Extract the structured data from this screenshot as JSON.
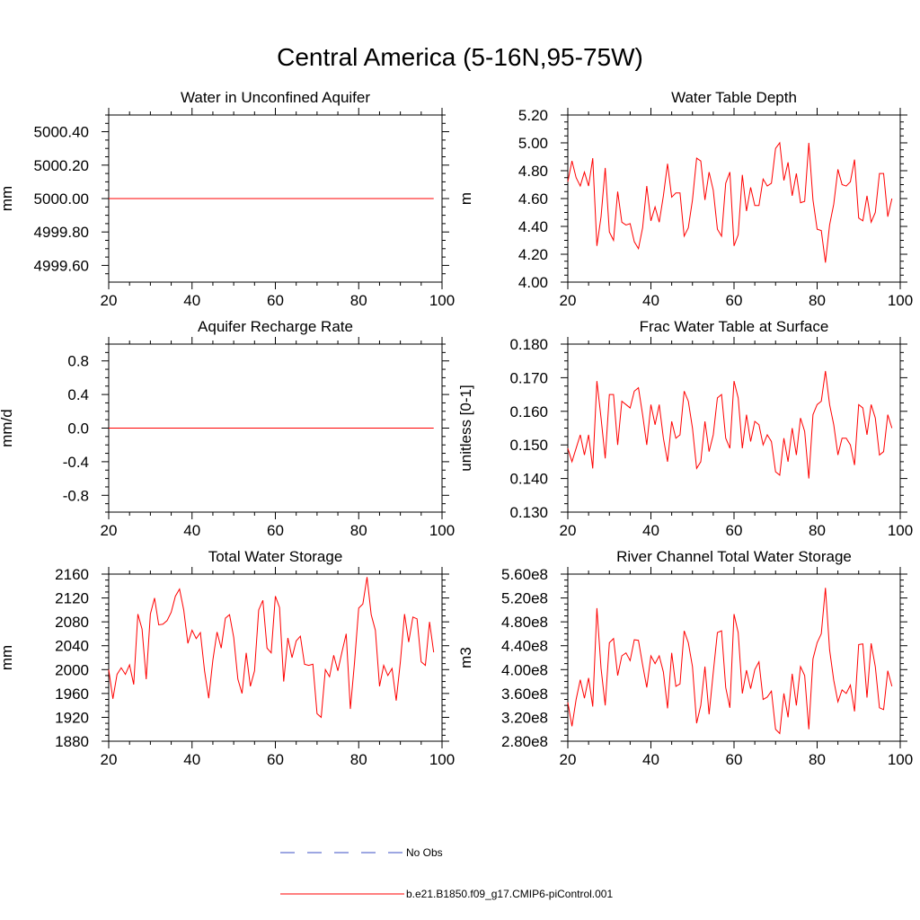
{
  "title": "Central America (5-16N,95-75W)",
  "colors": {
    "series": "#ff0000",
    "obs": "#3b4fc4",
    "axis": "#000000"
  },
  "legend": {
    "obs_label": "No Obs",
    "model_label": "b.e21.B1850.f09_g17.CMIP6-piControl.001"
  },
  "chart_data": [
    {
      "type": "line",
      "title": "Water in Unconfined Aquifer",
      "ylabel": "mm",
      "xlim": [
        20,
        100
      ],
      "ylim": [
        4999.5,
        5000.5
      ],
      "xticks": [
        20,
        40,
        60,
        80,
        100
      ],
      "xtick_labels": [
        "20",
        "40",
        "60",
        "80",
        "100"
      ],
      "yticks": [
        4999.6,
        4999.8,
        5000.0,
        5000.2,
        5000.4
      ],
      "ytick_labels": [
        "4999.60",
        "4999.80",
        "5000.00",
        "5000.20",
        "5000.40"
      ],
      "x_start": 20,
      "series": [
        {
          "name": "b.e21.B1850.f09_g17.CMIP6-piControl.001",
          "values": [
            5000,
            5000,
            5000,
            5000,
            5000,
            5000,
            5000,
            5000,
            5000,
            5000,
            5000,
            5000,
            5000,
            5000,
            5000,
            5000,
            5000,
            5000,
            5000,
            5000,
            5000,
            5000,
            5000,
            5000,
            5000,
            5000,
            5000,
            5000,
            5000,
            5000,
            5000,
            5000,
            5000,
            5000,
            5000,
            5000,
            5000,
            5000,
            5000,
            5000,
            5000,
            5000,
            5000,
            5000,
            5000,
            5000,
            5000,
            5000,
            5000,
            5000,
            5000,
            5000,
            5000,
            5000,
            5000,
            5000,
            5000,
            5000,
            5000,
            5000,
            5000,
            5000,
            5000,
            5000,
            5000,
            5000,
            5000,
            5000,
            5000,
            5000,
            5000,
            5000,
            5000,
            5000,
            5000,
            5000,
            5000,
            5000,
            5000
          ]
        }
      ]
    },
    {
      "type": "line",
      "title": "Water Table Depth",
      "ylabel": "m",
      "xlim": [
        20,
        100
      ],
      "ylim": [
        4.0,
        5.2
      ],
      "xticks": [
        20,
        40,
        60,
        80,
        100
      ],
      "xtick_labels": [
        "20",
        "40",
        "60",
        "80",
        "100"
      ],
      "yticks": [
        4.0,
        4.2,
        4.4,
        4.6,
        4.8,
        5.0,
        5.2
      ],
      "ytick_labels": [
        "4.00",
        "4.20",
        "4.40",
        "4.60",
        "4.80",
        "5.00",
        "5.20"
      ],
      "x_start": 20,
      "series": [
        {
          "name": "b.e21.B1850.f09_g17.CMIP6-piControl.001",
          "values": [
            4.72,
            4.87,
            4.75,
            4.69,
            4.79,
            4.69,
            4.89,
            4.26,
            4.47,
            4.82,
            4.36,
            4.3,
            4.65,
            4.43,
            4.41,
            4.42,
            4.29,
            4.24,
            4.39,
            4.69,
            4.44,
            4.54,
            4.43,
            4.62,
            4.85,
            4.61,
            4.64,
            4.64,
            4.33,
            4.39,
            4.59,
            4.89,
            4.87,
            4.59,
            4.79,
            4.66,
            4.38,
            4.33,
            4.71,
            4.79,
            4.26,
            4.34,
            4.77,
            4.51,
            4.68,
            4.55,
            4.55,
            4.74,
            4.69,
            4.71,
            4.96,
            5.0,
            4.73,
            4.86,
            4.62,
            4.78,
            4.57,
            4.58,
            5.0,
            4.59,
            4.38,
            4.37,
            4.14,
            4.41,
            4.56,
            4.81,
            4.7,
            4.69,
            4.72,
            4.88,
            4.46,
            4.44,
            4.62,
            4.43,
            4.5,
            4.78,
            4.78,
            4.47,
            4.6
          ]
        }
      ]
    },
    {
      "type": "line",
      "title": "Aquifer Recharge Rate",
      "ylabel": "mm/d",
      "xlim": [
        20,
        100
      ],
      "ylim": [
        -1.0,
        1.0
      ],
      "xticks": [
        20,
        40,
        60,
        80,
        100
      ],
      "xtick_labels": [
        "20",
        "40",
        "60",
        "80",
        "100"
      ],
      "yticks": [
        -0.8,
        -0.4,
        0.0,
        0.4,
        0.8
      ],
      "ytick_labels": [
        "-0.8",
        "-0.4",
        "0.0",
        "0.4",
        "0.8"
      ],
      "x_start": 20,
      "series": [
        {
          "name": "b.e21.B1850.f09_g17.CMIP6-piControl.001",
          "values": [
            0,
            0,
            0,
            0,
            0,
            0,
            0,
            0,
            0,
            0,
            0,
            0,
            0,
            0,
            0,
            0,
            0,
            0,
            0,
            0,
            0,
            0,
            0,
            0,
            0,
            0,
            0,
            0,
            0,
            0,
            0,
            0,
            0,
            0,
            0,
            0,
            0,
            0,
            0,
            0,
            0,
            0,
            0,
            0,
            0,
            0,
            0,
            0,
            0,
            0,
            0,
            0,
            0,
            0,
            0,
            0,
            0,
            0,
            0,
            0,
            0,
            0,
            0,
            0,
            0,
            0,
            0,
            0,
            0,
            0,
            0,
            0,
            0,
            0,
            0,
            0,
            0,
            0,
            0
          ]
        }
      ]
    },
    {
      "type": "line",
      "title": "Frac Water Table at Surface",
      "ylabel": "unitless [0-1]",
      "xlim": [
        20,
        100
      ],
      "ylim": [
        0.13,
        0.18
      ],
      "xticks": [
        20,
        40,
        60,
        80,
        100
      ],
      "xtick_labels": [
        "20",
        "40",
        "60",
        "80",
        "100"
      ],
      "yticks": [
        0.13,
        0.14,
        0.15,
        0.16,
        0.17,
        0.18
      ],
      "ytick_labels": [
        "0.130",
        "0.140",
        "0.150",
        "0.160",
        "0.170",
        "0.180"
      ],
      "x_start": 20,
      "series": [
        {
          "name": "b.e21.B1850.f09_g17.CMIP6-piControl.001",
          "values": [
            0.149,
            0.145,
            0.149,
            0.153,
            0.147,
            0.153,
            0.143,
            0.169,
            0.158,
            0.146,
            0.165,
            0.165,
            0.15,
            0.163,
            0.162,
            0.161,
            0.166,
            0.167,
            0.159,
            0.15,
            0.162,
            0.156,
            0.162,
            0.152,
            0.145,
            0.157,
            0.152,
            0.153,
            0.166,
            0.163,
            0.155,
            0.143,
            0.145,
            0.157,
            0.148,
            0.153,
            0.164,
            0.165,
            0.152,
            0.149,
            0.169,
            0.164,
            0.149,
            0.159,
            0.151,
            0.157,
            0.156,
            0.15,
            0.153,
            0.151,
            0.142,
            0.141,
            0.152,
            0.145,
            0.155,
            0.147,
            0.158,
            0.154,
            0.14,
            0.159,
            0.162,
            0.163,
            0.172,
            0.162,
            0.156,
            0.147,
            0.152,
            0.152,
            0.15,
            0.144,
            0.162,
            0.161,
            0.153,
            0.162,
            0.158,
            0.147,
            0.148,
            0.159,
            0.155
          ]
        }
      ]
    },
    {
      "type": "line",
      "title": "Total Water Storage",
      "ylabel": "mm",
      "xlim": [
        20,
        100
      ],
      "ylim": [
        1880,
        2160
      ],
      "xticks": [
        20,
        40,
        60,
        80,
        100
      ],
      "xtick_labels": [
        "20",
        "40",
        "60",
        "80",
        "100"
      ],
      "yticks": [
        1880,
        1920,
        1960,
        2000,
        2040,
        2080,
        2120,
        2160
      ],
      "ytick_labels": [
        "1880",
        "1920",
        "1960",
        "2000",
        "2040",
        "2080",
        "2120",
        "2160"
      ],
      "x_start": 20,
      "series": [
        {
          "name": "b.e21.B1850.f09_g17.CMIP6-piControl.001",
          "values": [
            2000,
            1951,
            1992,
            2003,
            1992,
            2008,
            1975,
            2093,
            2068,
            1984,
            2093,
            2120,
            2075,
            2076,
            2082,
            2096,
            2123,
            2135,
            2100,
            2044,
            2066,
            2052,
            2062,
            1998,
            1952,
            2016,
            2063,
            2036,
            2086,
            2092,
            2054,
            1984,
            1960,
            2028,
            1972,
            1998,
            2100,
            2116,
            2036,
            2028,
            2123,
            2104,
            1980,
            2053,
            2020,
            2048,
            2056,
            2009,
            2007,
            2009,
            1926,
            1920,
            2000,
            1988,
            2024,
            1998,
            2030,
            2060,
            1934,
            2012,
            2103,
            2110,
            2155,
            2092,
            2066,
            1972,
            2007,
            1990,
            2002,
            1948,
            2013,
            2093,
            2046,
            2088,
            2085,
            2013,
            2007,
            2080,
            2029
          ]
        }
      ]
    },
    {
      "type": "line",
      "title": "River Channel Total Water Storage",
      "ylabel": "m3",
      "xlim": [
        20,
        100
      ],
      "ylim": [
        280000000.0,
        560000000.0
      ],
      "xticks": [
        20,
        40,
        60,
        80,
        100
      ],
      "xtick_labels": [
        "20",
        "40",
        "60",
        "80",
        "100"
      ],
      "yticks": [
        280000000.0,
        320000000.0,
        360000000.0,
        400000000.0,
        440000000.0,
        480000000.0,
        520000000.0,
        560000000.0
      ],
      "ytick_labels": [
        "2.80e8",
        "3.20e8",
        "3.60e8",
        "4.00e8",
        "4.40e8",
        "4.80e8",
        "5.20e8",
        "5.60e8"
      ],
      "x_start": 20,
      "series": [
        {
          "name": "b.e21.B1850.f09_g17.CMIP6-piControl.001",
          "values": [
            345000000.0,
            305000000.0,
            350000000.0,
            383000000.0,
            352000000.0,
            386000000.0,
            338000000.0,
            503000000.0,
            402000000.0,
            340000000.0,
            445000000.0,
            452000000.0,
            390000000.0,
            423000000.0,
            428000000.0,
            415000000.0,
            450000000.0,
            449000000.0,
            408000000.0,
            370000000.0,
            423000000.0,
            410000000.0,
            423000000.0,
            396000000.0,
            335000000.0,
            428000000.0,
            372000000.0,
            376000000.0,
            465000000.0,
            445000000.0,
            405000000.0,
            310000000.0,
            340000000.0,
            405000000.0,
            325000000.0,
            395000000.0,
            462000000.0,
            465000000.0,
            370000000.0,
            336000000.0,
            493000000.0,
            462000000.0,
            360000000.0,
            399000000.0,
            368000000.0,
            400000000.0,
            413000000.0,
            350000000.0,
            354000000.0,
            364000000.0,
            300000000.0,
            293000000.0,
            360000000.0,
            320000000.0,
            393000000.0,
            340000000.0,
            405000000.0,
            390000000.0,
            300000000.0,
            418000000.0,
            445000000.0,
            460000000.0,
            537000000.0,
            433000000.0,
            382000000.0,
            346000000.0,
            366000000.0,
            360000000.0,
            374000000.0,
            330000000.0,
            442000000.0,
            443000000.0,
            353000000.0,
            444000000.0,
            405000000.0,
            336000000.0,
            333000000.0,
            398000000.0,
            372000000.0
          ]
        }
      ]
    }
  ]
}
